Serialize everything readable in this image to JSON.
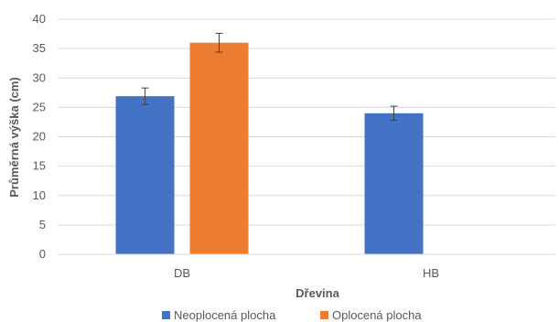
{
  "chart_data": {
    "type": "bar",
    "xlabel": "Dřevina",
    "ylabel": "Průměrná výška (cm)",
    "ylim": [
      0,
      40
    ],
    "y_ticks": [
      0,
      5,
      10,
      15,
      20,
      25,
      30,
      35,
      40
    ],
    "grid": true,
    "legend_position": "bottom",
    "categories": [
      "DB",
      "HB"
    ],
    "series": [
      {
        "name": "Neoplocená plocha",
        "color": "#4472C4",
        "values": [
          26.9,
          24.0
        ],
        "error": [
          1.4,
          1.2
        ]
      },
      {
        "name": "Oplocená plocha",
        "color": "#ED7D31",
        "values": [
          36.0,
          null
        ],
        "error": [
          1.6,
          null
        ]
      }
    ]
  }
}
